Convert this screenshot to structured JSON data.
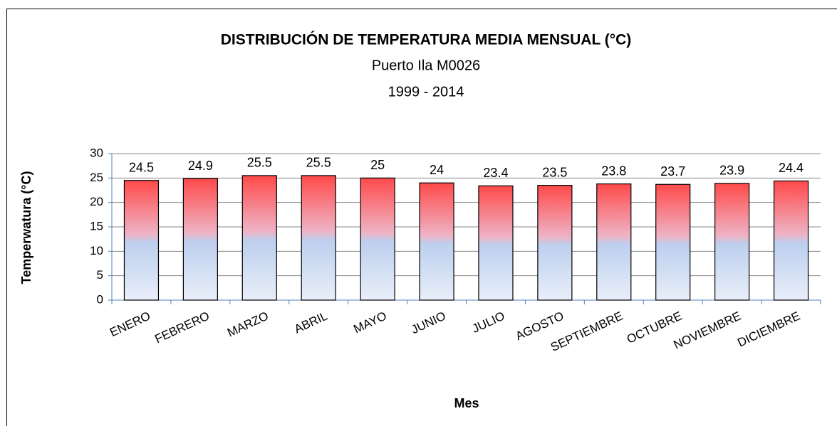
{
  "chart_data": {
    "type": "bar",
    "title": "DISTRIBUCIÓN DE TEMPERATURA MEDIA MENSUAL (°C)",
    "subtitle": "Puerto Ila M0026",
    "period": "1999 - 2014",
    "x_label": "Mes",
    "y_label": "Temperwatura (°C)",
    "categories": [
      "ENERO",
      "FEBRERO",
      "MARZO",
      "ABRIL",
      "MAYO",
      "JUNIO",
      "JULIO",
      "AGOSTO",
      "SEPTIEMBRE",
      "OCTUBRE",
      "NOVIEMBRE",
      "DICIEMBRE"
    ],
    "values": [
      24.5,
      24.9,
      25.5,
      25.5,
      25,
      24,
      23.4,
      23.5,
      23.8,
      23.7,
      23.9,
      24.4
    ],
    "gradient_colors": [
      "#ff4a4a",
      "#eeb4c6",
      "#bccfee",
      "#e9eff9"
    ],
    "ylim": [
      0,
      30
    ],
    "yticks": [
      0,
      5,
      10,
      15,
      20,
      25,
      30
    ],
    "grid": true
  }
}
